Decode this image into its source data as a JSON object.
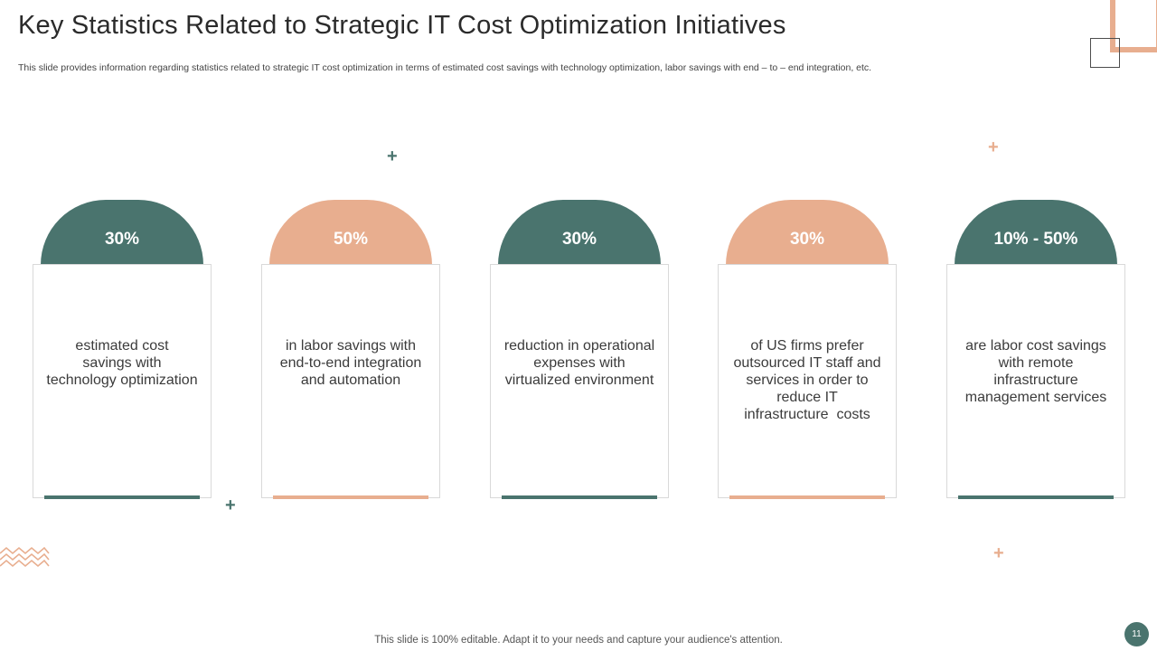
{
  "slide": {
    "title": "Key Statistics Related to Strategic IT Cost Optimization Initiatives",
    "subtitle": "This slide provides information regarding statistics related to strategic IT cost optimization in terms of estimated cost savings with technology optimization, labor savings with end – to – end integration, etc.",
    "footer": "This slide is 100% editable. Adapt it to your needs and capture your audience's attention.",
    "page_number": "11"
  },
  "colors": {
    "teal": "#4a746e",
    "peach": "#e8ae8f"
  },
  "decorations": {
    "plus_glyph": "+"
  },
  "stats": [
    {
      "value": "30%",
      "lines": [
        "estimated cost",
        "savings with",
        "technology optimization"
      ],
      "color": "teal"
    },
    {
      "value": "50%",
      "lines": [
        "in labor savings with",
        "end-to-end integration",
        "and automation"
      ],
      "color": "peach"
    },
    {
      "value": "30%",
      "lines": [
        "reduction in operational",
        "expenses with",
        "virtualized environment"
      ],
      "color": "teal"
    },
    {
      "value": "30%",
      "lines": [
        "of US firms prefer",
        "outsourced IT staff and",
        "services in order to",
        "reduce IT",
        "infrastructure  costs"
      ],
      "color": "peach"
    },
    {
      "value": "10% - 50%",
      "lines": [
        "are labor cost savings",
        "with remote",
        "infrastructure",
        "management services"
      ],
      "color": "teal"
    }
  ]
}
